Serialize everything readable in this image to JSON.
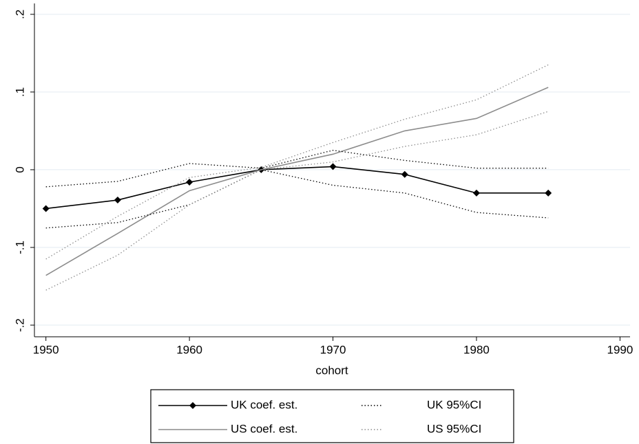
{
  "chart_data": {
    "type": "line",
    "x": [
      1950,
      1955,
      1960,
      1965,
      1970,
      1975,
      1980,
      1985
    ],
    "xlabel": "cohort",
    "xlim": [
      1949.2,
      1990.7
    ],
    "xticks": [
      1950,
      1960,
      1970,
      1980,
      1990
    ],
    "ylim": [
      -0.215,
      0.214
    ],
    "yticks": [
      {
        "value": -0.2,
        "label": "-.2"
      },
      {
        "value": -0.1,
        "label": "-.1"
      },
      0,
      {
        "value": 0.1,
        "label": ".1"
      },
      {
        "value": 0.2,
        "label": ".2"
      }
    ],
    "grid": true,
    "series": [
      {
        "name": "UK coef. est.",
        "color": "#000000",
        "style": "solid",
        "marker": "diamond",
        "values": [
          -0.05,
          -0.039,
          -0.016,
          0,
          0.004,
          -0.006,
          -0.03,
          -0.03
        ]
      },
      {
        "name": "US coef. est.",
        "color": "#8c8c8c",
        "style": "solid",
        "values": [
          -0.136,
          -0.082,
          -0.027,
          0,
          0.02,
          0.05,
          0.066,
          0.106
        ]
      },
      {
        "name": "UK 95%CI",
        "color": "#000000",
        "style": "dotted",
        "lower": [
          -0.075,
          -0.068,
          -0.045,
          0,
          -0.02,
          -0.03,
          -0.055,
          -0.062
        ],
        "upper": [
          -0.022,
          -0.015,
          0.008,
          0.002,
          0.025,
          0.012,
          0.002,
          0.002
        ]
      },
      {
        "name": "US 95%CI",
        "color": "#8c8c8c",
        "style": "dotted",
        "lower": [
          -0.155,
          -0.11,
          -0.045,
          0,
          0.01,
          0.03,
          0.045,
          0.075
        ],
        "upper": [
          -0.115,
          -0.06,
          -0.01,
          0.003,
          0.035,
          0.065,
          0.09,
          0.135
        ]
      }
    ]
  }
}
